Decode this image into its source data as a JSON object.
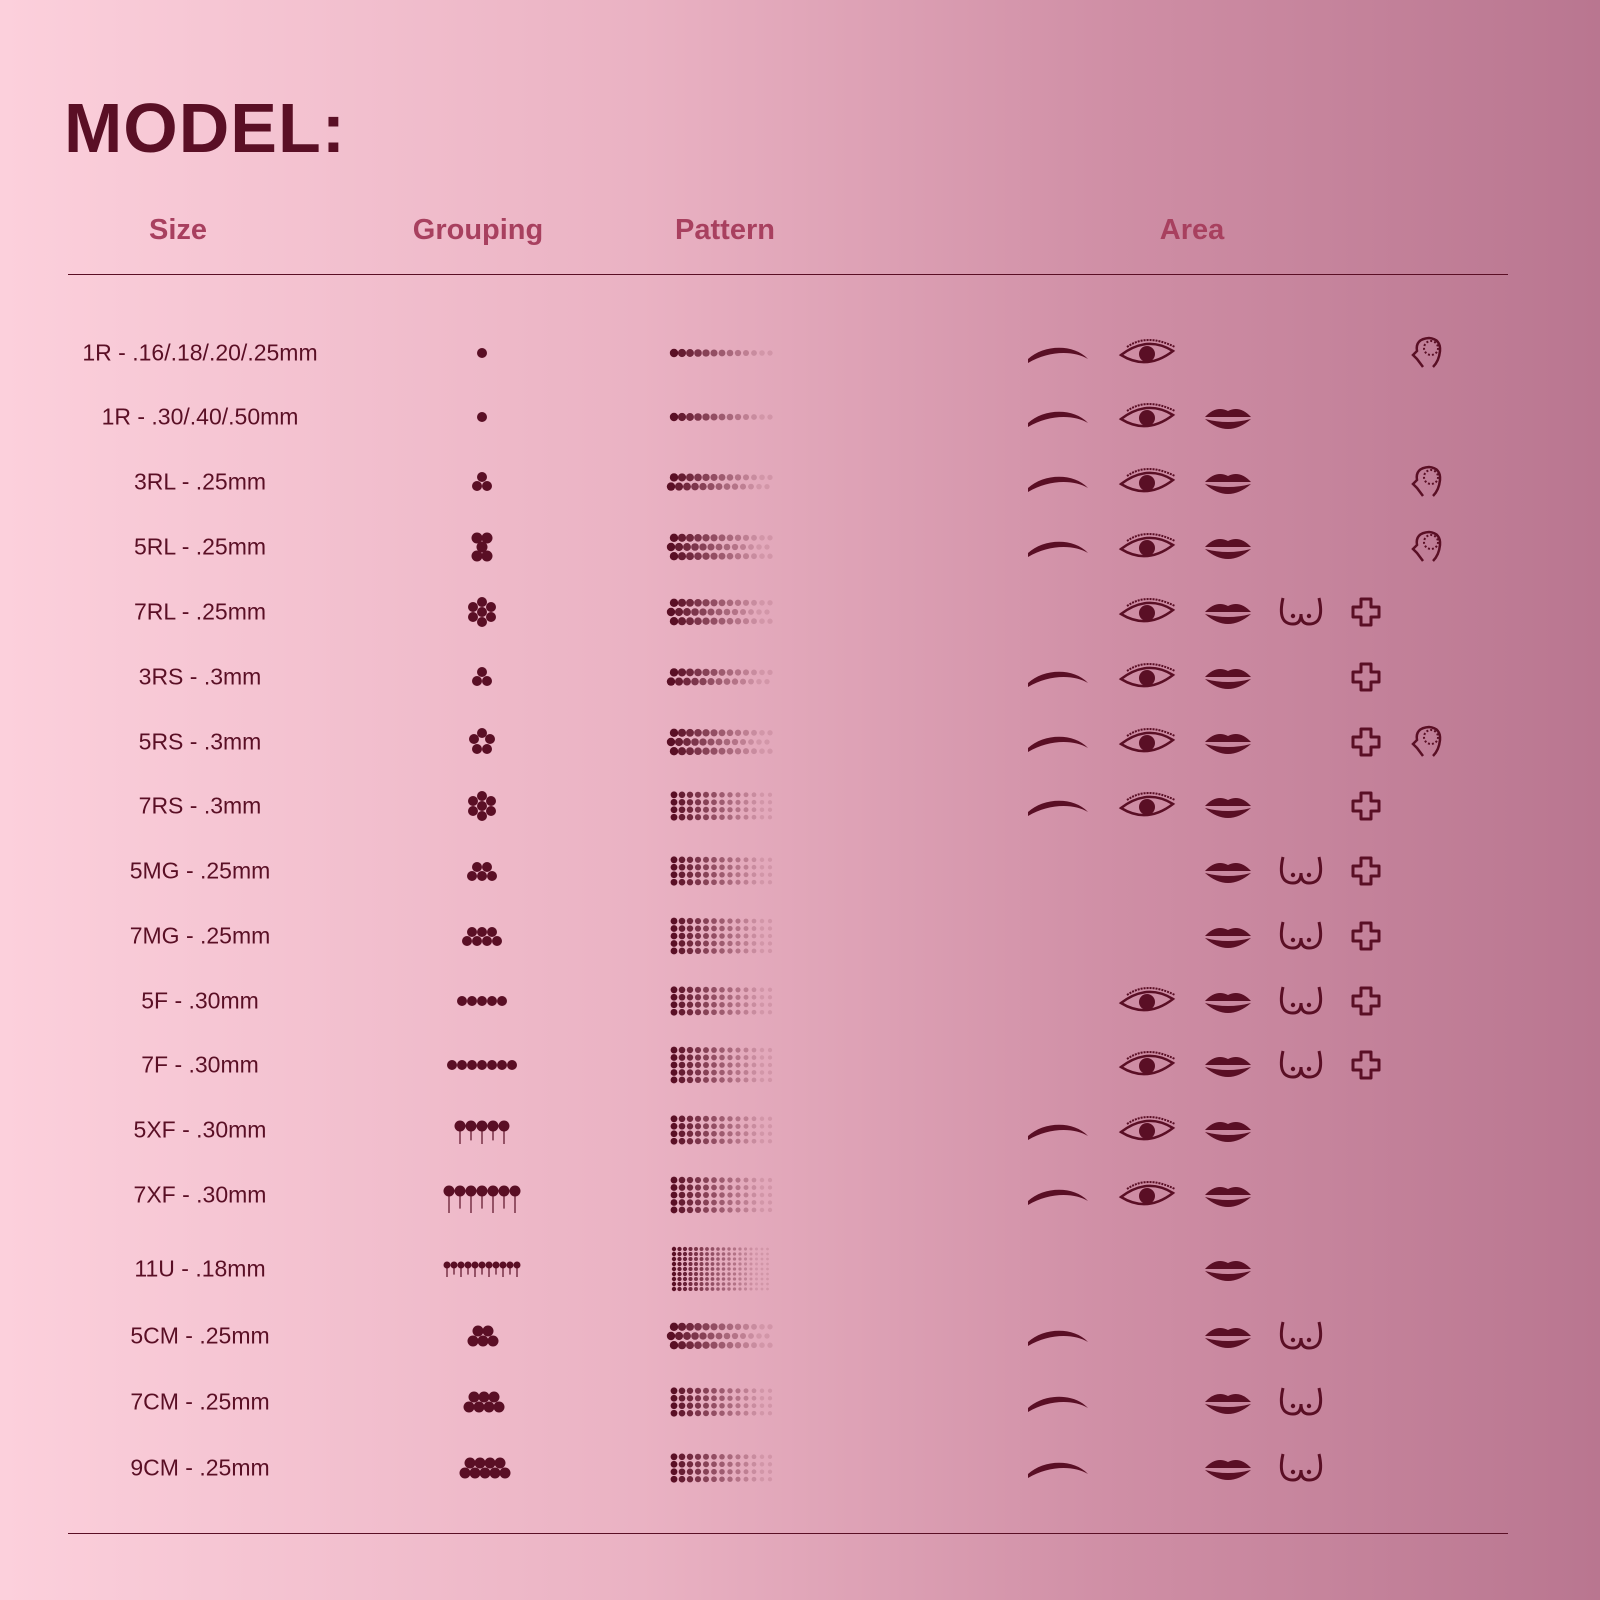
{
  "title": "MODEL:",
  "headers": {
    "size": "Size",
    "grouping": "Grouping",
    "pattern": "Pattern",
    "area": "Area"
  },
  "colors": {
    "ink": "#5a0f25",
    "header": "#a8405f",
    "bg_left": "#fcd0dc",
    "bg_right": "#b97690"
  },
  "area_icons": [
    "eyebrow-icon",
    "eye-icon",
    "lips-icon",
    "breast-icon",
    "quatrefoil-icon",
    "scalp-head-icon"
  ],
  "rows": [
    {
      "size": "1R - .16/.18/.20/.25mm",
      "grouping": "1R",
      "areas": [
        "eyebrow",
        "eye",
        "scalp"
      ]
    },
    {
      "size": "1R - .30/.40/.50mm",
      "grouping": "1R",
      "areas": [
        "eyebrow",
        "eye",
        "lips"
      ]
    },
    {
      "size": "3RL - .25mm",
      "grouping": "3RL",
      "areas": [
        "eyebrow",
        "eye",
        "lips",
        "scalp"
      ]
    },
    {
      "size": "5RL - .25mm",
      "grouping": "5RL",
      "areas": [
        "eyebrow",
        "eye",
        "lips",
        "scalp"
      ]
    },
    {
      "size": "7RL - .25mm",
      "grouping": "7RL",
      "areas": [
        "eye",
        "lips",
        "breast",
        "quatrefoil"
      ]
    },
    {
      "size": "3RS - .3mm",
      "grouping": "3RS",
      "areas": [
        "eyebrow",
        "eye",
        "lips",
        "quatrefoil"
      ]
    },
    {
      "size": "5RS - .3mm",
      "grouping": "5RS",
      "areas": [
        "eyebrow",
        "eye",
        "lips",
        "quatrefoil",
        "scalp"
      ]
    },
    {
      "size": "7RS - .3mm",
      "grouping": "7RS",
      "areas": [
        "eyebrow",
        "eye",
        "lips",
        "quatrefoil"
      ]
    },
    {
      "size": "5MG - .25mm",
      "grouping": "5MG",
      "areas": [
        "lips",
        "breast",
        "quatrefoil"
      ]
    },
    {
      "size": "7MG - .25mm",
      "grouping": "7MG",
      "areas": [
        "lips",
        "breast",
        "quatrefoil"
      ]
    },
    {
      "size": "5F - .30mm",
      "grouping": "5F",
      "areas": [
        "eye",
        "lips",
        "breast",
        "quatrefoil"
      ]
    },
    {
      "size": "7F - .30mm",
      "grouping": "7F",
      "areas": [
        "eye",
        "lips",
        "breast",
        "quatrefoil"
      ]
    },
    {
      "size": "5XF - .30mm",
      "grouping": "5XF",
      "areas": [
        "eyebrow",
        "eye",
        "lips"
      ]
    },
    {
      "size": "7XF - .30mm",
      "grouping": "7XF",
      "areas": [
        "eyebrow",
        "eye",
        "lips"
      ]
    },
    {
      "size": "11U - .18mm",
      "grouping": "11U",
      "areas": [
        "lips"
      ]
    },
    {
      "size": "5CM - .25mm",
      "grouping": "5CM",
      "areas": [
        "eyebrow",
        "lips",
        "breast"
      ]
    },
    {
      "size": "7CM - .25mm",
      "grouping": "7CM",
      "areas": [
        "eyebrow",
        "lips",
        "breast"
      ]
    },
    {
      "size": "9CM - .25mm",
      "grouping": "9CM",
      "areas": [
        "eyebrow",
        "lips",
        "breast"
      ]
    }
  ]
}
